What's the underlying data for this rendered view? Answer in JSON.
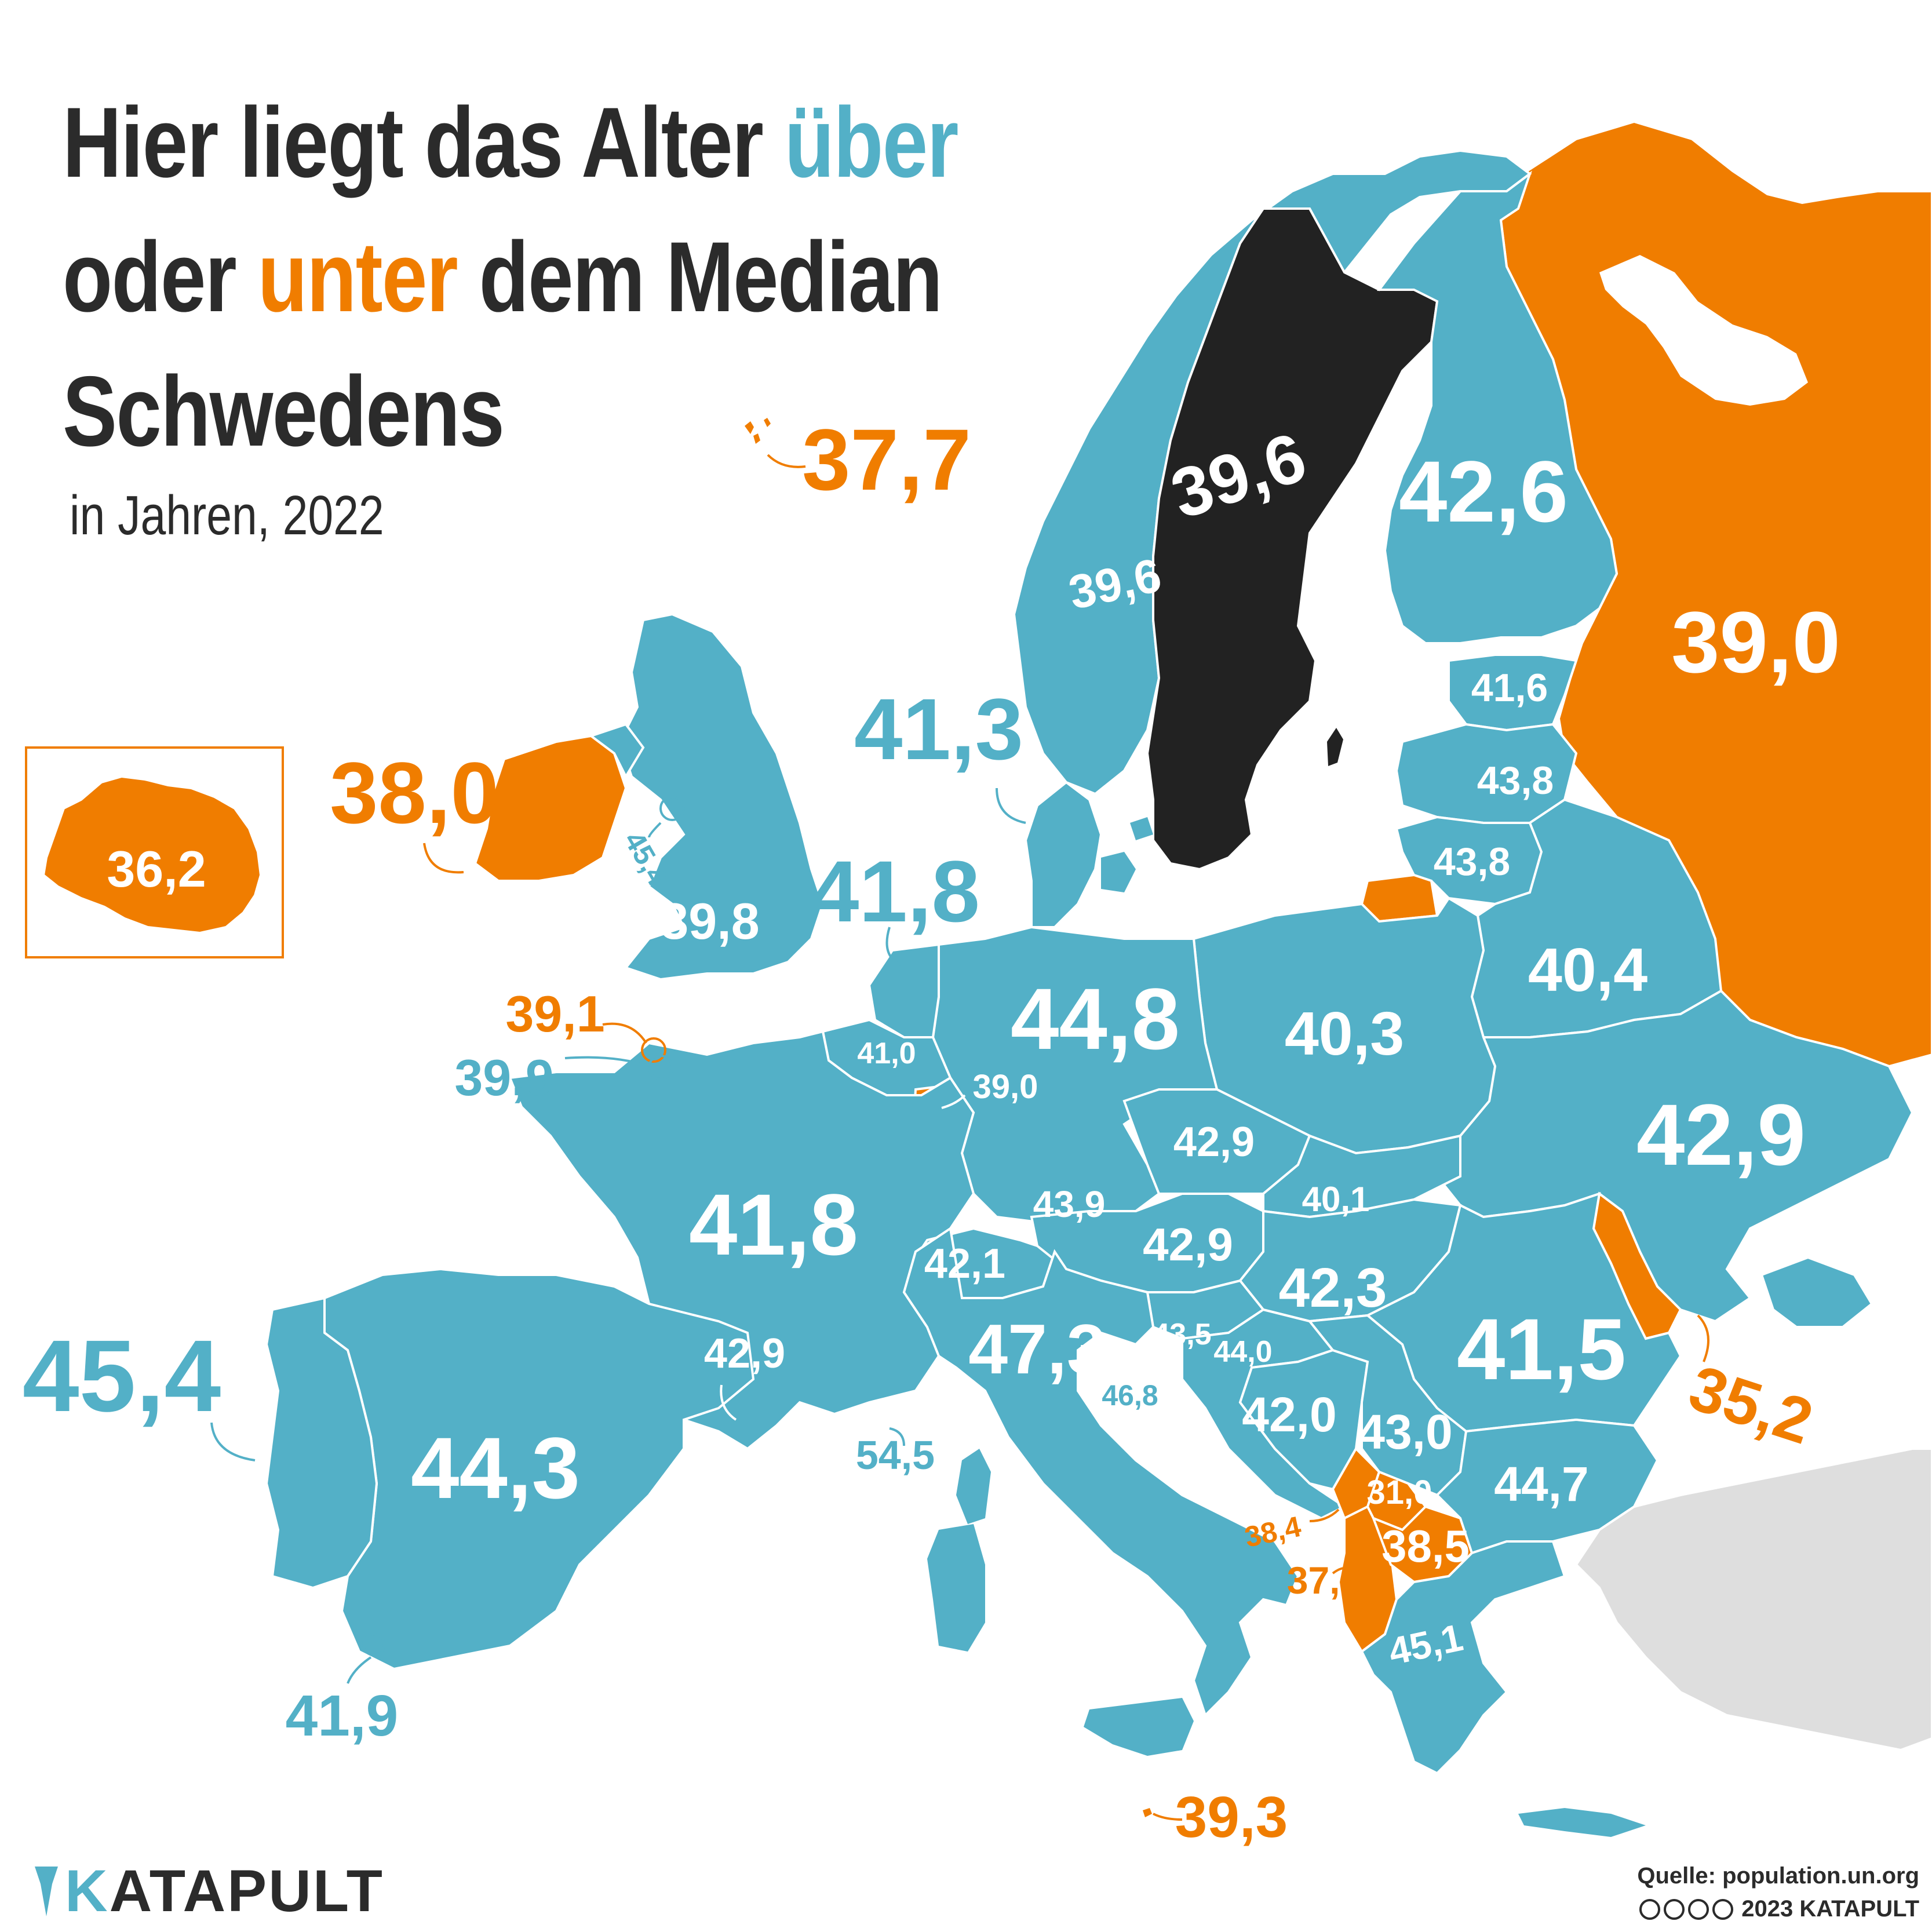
{
  "title": {
    "line1_start": "Hier liegt das Alter ",
    "line1_above": "über",
    "line2_start": "oder ",
    "line2_below": "unter",
    "line2_end": " dem Median",
    "line3": "Schwedens"
  },
  "subtitle": "in Jahren, 2022",
  "colors": {
    "above": "#53b0c7",
    "below": "#f07d00",
    "reference": "#222222",
    "other": "#dedede",
    "text": "#2b2b2b",
    "border": "#ffffff"
  },
  "countries": {
    "sweden": "39,6",
    "norway": "39,6",
    "finland": "42,6",
    "russia": "39,0",
    "faroe": "37,7",
    "iceland": "36,2",
    "ireland": "38,0",
    "uk": "39,8",
    "isle_of_man": "45,4",
    "denmark": "41,3",
    "netherlands": "41,8",
    "belgium": "41,0",
    "luxembourg": "39,0",
    "germany": "44,8",
    "poland": "40,3",
    "estonia": "41,6",
    "latvia": "43,8",
    "lithuania": "43,8",
    "belarus": "40,4",
    "ukraine": "42,9",
    "jersey": "39,1",
    "guernsey": "39,9",
    "france": "41,8",
    "czechia": "42,9",
    "slovakia": "40,1",
    "austria": "42,9",
    "hungary": "42,3",
    "switzerland": "42,1",
    "liechtenstein": "43,9",
    "moldova": "35,2",
    "romania": "41,5",
    "italy": "47,3",
    "slovenia": "43,5",
    "croatia": "44,0",
    "san_marino": "46,8",
    "monaco": "42,9",
    "bosnia": "42,0",
    "serbia": "43,0",
    "bulgaria": "44,7",
    "montenegro": "38,4",
    "kosovo": "31,0",
    "north_macedonia": "38,5",
    "albania": "37,6",
    "greece": "45,1",
    "spain": "44,3",
    "portugal": "45,4",
    "gibraltar": "41,9",
    "andorra": "54,5",
    "malta": "39,3"
  },
  "logo": "KATAPULT",
  "source": "Quelle: population.un.org",
  "copyright": "2023 KATAPULT",
  "icons": [
    "katapult-logo-icon",
    "creative-commons-icon"
  ]
}
